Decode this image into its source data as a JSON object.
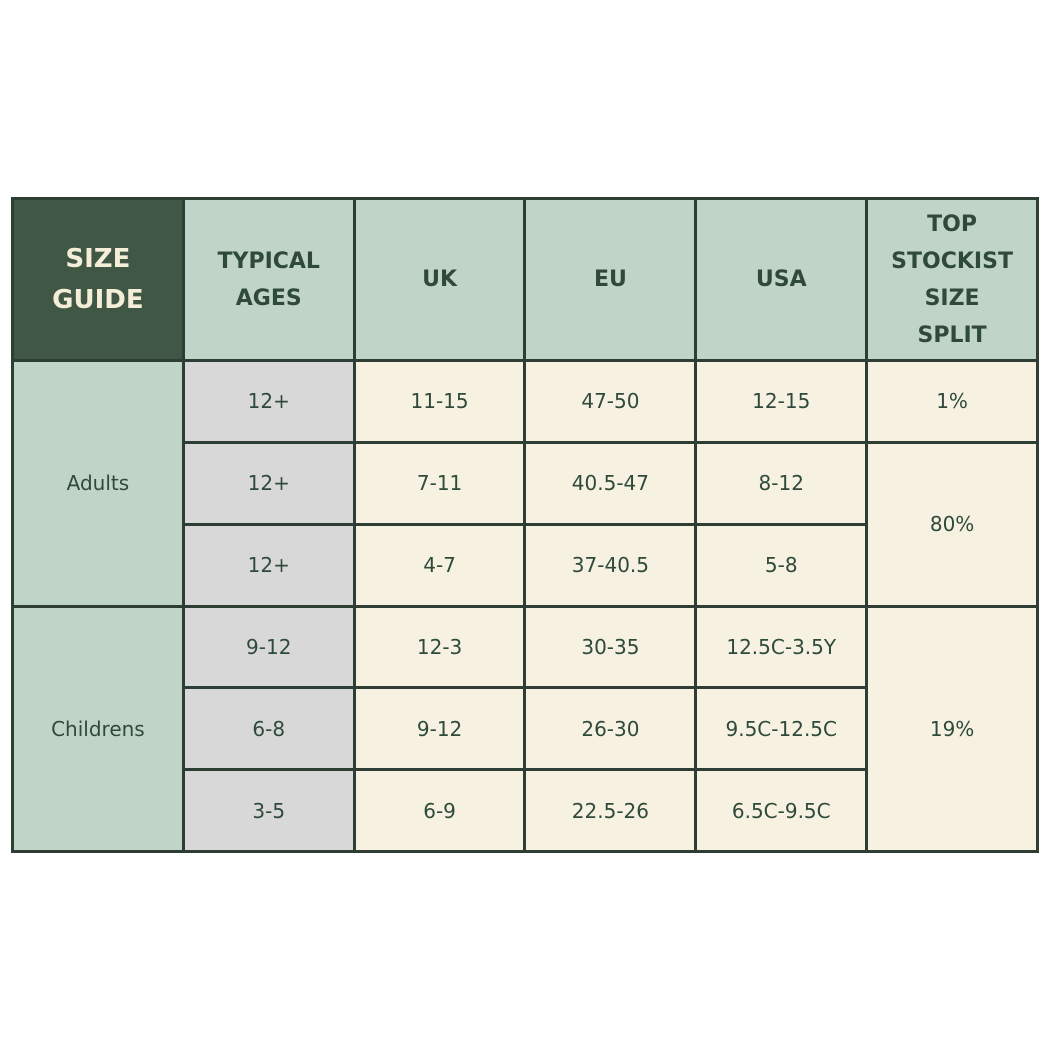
{
  "header": {
    "corner": "SIZE GUIDE",
    "columns": [
      "TYPICAL AGES",
      "UK",
      "EU",
      "USA",
      "TOP STOCKIST SIZE SPLIT"
    ]
  },
  "groups": [
    {
      "label": "Adults",
      "split": [
        "1%",
        "80%"
      ]
    },
    {
      "label": "Childrens",
      "split": [
        "19%"
      ]
    }
  ],
  "rows": [
    {
      "age": "12+",
      "uk": "11-15",
      "eu": "47-50",
      "usa": "12-15"
    },
    {
      "age": "12+",
      "uk": "7-11",
      "eu": "40.5-47",
      "usa": "8-12"
    },
    {
      "age": "12+",
      "uk": "4-7",
      "eu": "37-40.5",
      "usa": "5-8"
    },
    {
      "age": "9-12",
      "uk": "12-3",
      "eu": "30-35",
      "usa": "12.5C-3.5Y"
    },
    {
      "age": "6-8",
      "uk": "9-12",
      "eu": "26-30",
      "usa": "9.5C-12.5C"
    },
    {
      "age": "3-5",
      "uk": "6-9",
      "eu": "22.5-26",
      "usa": "6.5C-9.5C"
    }
  ],
  "colors": {
    "dark": "#415746",
    "header": "#c1d4c8",
    "age": "#d8d8d8",
    "value": "#f6f1e1",
    "text": "#2f4a3a"
  }
}
